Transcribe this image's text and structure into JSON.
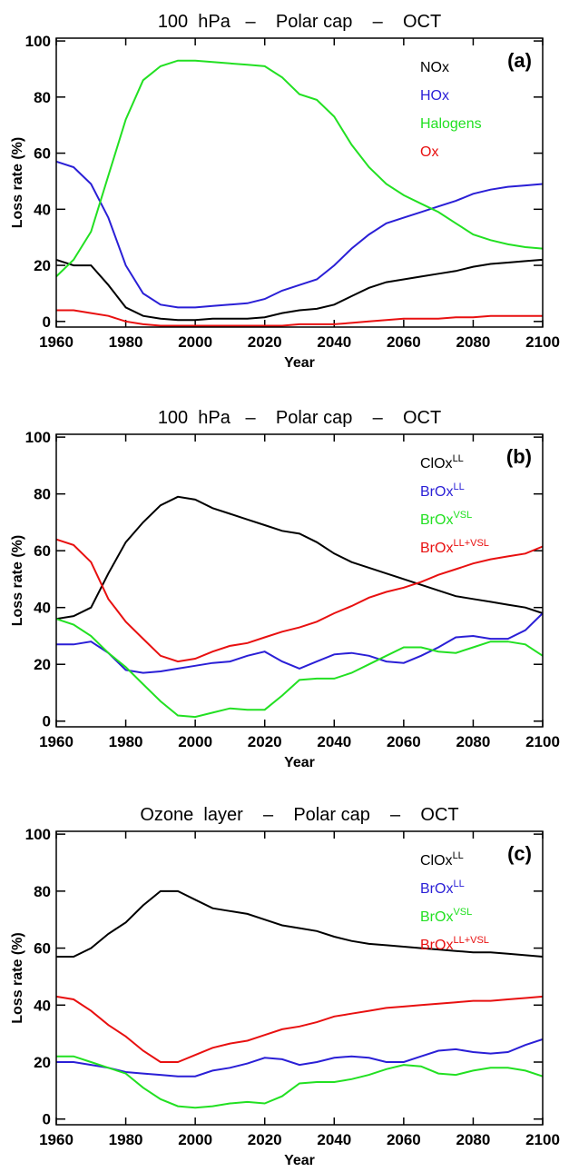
{
  "chart_data": [
    {
      "type": "line",
      "title": "100  hPa   –    Polar cap    –    OCT",
      "panel_label": "(a)",
      "x_label": "Year",
      "y_label": "Loss rate (%)",
      "xlim": [
        1960,
        2100
      ],
      "xticks": [
        1960,
        1980,
        2000,
        2020,
        2040,
        2060,
        2080,
        2100
      ],
      "ylim": [
        -2,
        101
      ],
      "yticks": [
        0,
        20,
        40,
        60,
        80,
        100
      ],
      "x": [
        1960,
        1965,
        1970,
        1975,
        1980,
        1985,
        1990,
        1995,
        2000,
        2005,
        2010,
        2015,
        2020,
        2025,
        2030,
        2035,
        2040,
        2045,
        2050,
        2055,
        2060,
        2065,
        2070,
        2075,
        2080,
        2085,
        2090,
        2095,
        2100
      ],
      "series": [
        {
          "name": "NOx",
          "color": "#000000",
          "values": [
            22,
            20,
            20,
            13,
            5,
            2,
            1,
            0.5,
            0.5,
            1,
            1,
            1,
            1.5,
            3,
            4,
            4.5,
            6,
            9,
            12,
            14,
            15,
            16,
            17,
            18,
            19.5,
            20.5,
            21,
            21.5,
            22
          ]
        },
        {
          "name": "HOx",
          "color": "#2a1fd6",
          "values": [
            57,
            55,
            49,
            37,
            20,
            10,
            6,
            5,
            5,
            5.5,
            6,
            6.5,
            8,
            11,
            13,
            15,
            20,
            26,
            31,
            35,
            37,
            39,
            41,
            43,
            45.5,
            47,
            48,
            48.5,
            49
          ]
        },
        {
          "name": "Halogens",
          "color": "#22e022",
          "values": [
            16,
            22,
            32,
            52,
            72,
            86,
            91,
            93,
            93,
            92.5,
            92,
            91.5,
            91,
            87,
            81,
            79,
            73,
            63,
            55,
            49,
            45,
            42,
            39,
            35,
            31,
            29,
            27.5,
            26.5,
            26
          ]
        },
        {
          "name": "Ox",
          "color": "#e81010",
          "values": [
            4,
            4,
            3,
            2,
            0,
            -1,
            -1.5,
            -1.5,
            -1.5,
            -1.5,
            -1.5,
            -1.5,
            -1.5,
            -1.5,
            -1,
            -1,
            -1,
            -0.5,
            0,
            0.5,
            1,
            1,
            1,
            1.5,
            1.5,
            2,
            2,
            2,
            2
          ]
        }
      ]
    },
    {
      "type": "line",
      "title": "100  hPa   –    Polar cap    –    OCT",
      "panel_label": "(b)",
      "x_label": "Year",
      "y_label": "Loss rate (%)",
      "xlim": [
        1960,
        2100
      ],
      "xticks": [
        1960,
        1980,
        2000,
        2020,
        2040,
        2060,
        2080,
        2100
      ],
      "ylim": [
        -2,
        101
      ],
      "yticks": [
        0,
        20,
        40,
        60,
        80,
        100
      ],
      "x": [
        1960,
        1965,
        1970,
        1975,
        1980,
        1985,
        1990,
        1995,
        2000,
        2005,
        2010,
        2015,
        2020,
        2025,
        2030,
        2035,
        2040,
        2045,
        2050,
        2055,
        2060,
        2065,
        2070,
        2075,
        2080,
        2085,
        2090,
        2095,
        2100
      ],
      "series": [
        {
          "name": "ClOx",
          "name_superscript": "LL",
          "color": "#000000",
          "values": [
            36,
            37,
            40,
            52,
            63,
            70,
            76,
            79,
            78,
            75,
            73,
            71,
            69,
            67,
            66,
            63,
            59,
            56,
            54,
            52,
            50,
            48,
            46,
            44,
            43,
            42,
            41,
            40,
            38
          ]
        },
        {
          "name": "BrOx",
          "name_superscript": "LL",
          "color": "#2a1fd6",
          "values": [
            27,
            27,
            28,
            24,
            18,
            17,
            17.5,
            18.5,
            19.5,
            20.5,
            21,
            23,
            24.5,
            21,
            18.5,
            21,
            23.5,
            24,
            23,
            21,
            20.5,
            23,
            26,
            29.5,
            30,
            29,
            29,
            32,
            38
          ]
        },
        {
          "name": "BrOx",
          "name_superscript": "VSL",
          "color": "#22e022",
          "values": [
            36,
            34,
            30,
            24,
            19,
            13,
            7,
            2,
            1.5,
            3,
            4.5,
            4,
            4,
            9,
            14.5,
            15,
            15,
            17,
            20,
            23,
            26,
            26,
            24.5,
            24,
            26,
            28,
            28,
            27,
            23
          ]
        },
        {
          "name": "BrOx",
          "name_superscript": "LL+VSL",
          "color": "#e81010",
          "values": [
            64,
            62,
            56,
            43,
            35,
            29,
            23,
            21,
            22,
            24.5,
            26.5,
            27.5,
            29.5,
            31.5,
            33,
            35,
            38,
            40.5,
            43.5,
            45.5,
            47,
            49,
            51.5,
            53.5,
            55.5,
            57,
            58,
            59,
            61.5
          ]
        }
      ]
    },
    {
      "type": "line",
      "title": "Ozone  layer    –    Polar cap    –    OCT",
      "panel_label": "(c)",
      "x_label": "Year",
      "y_label": "Loss rate (%)",
      "xlim": [
        1960,
        2100
      ],
      "xticks": [
        1960,
        1980,
        2000,
        2020,
        2040,
        2060,
        2080,
        2100
      ],
      "ylim": [
        -2,
        101
      ],
      "yticks": [
        0,
        20,
        40,
        60,
        80,
        100
      ],
      "x": [
        1960,
        1965,
        1970,
        1975,
        1980,
        1985,
        1990,
        1995,
        2000,
        2005,
        2010,
        2015,
        2020,
        2025,
        2030,
        2035,
        2040,
        2045,
        2050,
        2055,
        2060,
        2065,
        2070,
        2075,
        2080,
        2085,
        2090,
        2095,
        2100
      ],
      "series": [
        {
          "name": "ClOx",
          "name_superscript": "LL",
          "color": "#000000",
          "values": [
            57,
            57,
            60,
            65,
            69,
            75,
            80,
            80,
            77,
            74,
            73,
            72,
            70,
            68,
            67,
            66,
            64,
            62.5,
            61.5,
            61,
            60.5,
            60,
            59.5,
            59,
            58.5,
            58.5,
            58,
            57.5,
            57
          ]
        },
        {
          "name": "BrOx",
          "name_superscript": "LL",
          "color": "#2a1fd6",
          "values": [
            20,
            20,
            19,
            18,
            16.5,
            16,
            15.5,
            15,
            15,
            17,
            18,
            19.5,
            21.5,
            21,
            19,
            20,
            21.5,
            22,
            21.5,
            20,
            20,
            22,
            24,
            24.5,
            23.5,
            23,
            23.5,
            26,
            28
          ]
        },
        {
          "name": "BrOx",
          "name_superscript": "VSL",
          "color": "#22e022",
          "values": [
            22,
            22,
            20,
            18,
            16,
            11,
            7,
            4.5,
            4,
            4.5,
            5.5,
            6,
            5.5,
            8,
            12.5,
            13,
            13,
            14,
            15.5,
            17.5,
            19,
            18.5,
            16,
            15.5,
            17,
            18,
            18,
            17,
            15
          ]
        },
        {
          "name": "BrOx",
          "name_superscript": "LL+VSL",
          "color": "#e81010",
          "values": [
            43,
            42,
            38,
            33,
            29,
            24,
            20,
            20,
            22.5,
            25,
            26.5,
            27.5,
            29.5,
            31.5,
            32.5,
            34,
            36,
            37,
            38,
            39,
            39.5,
            40,
            40.5,
            41,
            41.5,
            41.5,
            42,
            42.5,
            43
          ]
        }
      ]
    }
  ]
}
